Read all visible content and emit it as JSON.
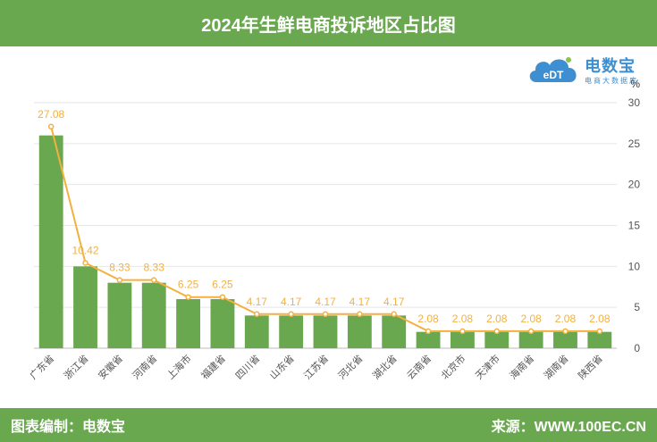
{
  "header": {
    "title": "2024年生鲜电商投诉地区占比图"
  },
  "footer": {
    "left_text": "图表编制：电数宝",
    "right_text": "来源：WWW.100EC.CN"
  },
  "logo": {
    "name": "电数宝",
    "subtitle": "电商大数据库",
    "mark_text": "eDT"
  },
  "colors": {
    "banner": "#6aa84f",
    "bar": "#6aa84f",
    "line": "#f4b03f",
    "axis_text": "#555555"
  },
  "chart_data": {
    "type": "bar",
    "categories": [
      "广东省",
      "浙江省",
      "安徽省",
      "河南省",
      "上海市",
      "福建省",
      "四川省",
      "山东省",
      "江苏省",
      "河北省",
      "湖北省",
      "云南省",
      "北京市",
      "天津市",
      "海南省",
      "湖南省",
      "陕西省"
    ],
    "series": [
      {
        "type": "bar",
        "values": [
          26,
          10,
          8,
          8,
          6,
          6,
          4,
          4,
          4,
          4,
          4,
          2,
          2,
          2,
          2,
          2,
          2
        ]
      },
      {
        "type": "line",
        "values": [
          27.08,
          10.42,
          8.33,
          8.33,
          6.25,
          6.25,
          4.17,
          4.17,
          4.17,
          4.17,
          4.17,
          2.08,
          2.08,
          2.08,
          2.08,
          2.08,
          2.08
        ]
      }
    ],
    "data_labels": [
      "27.08",
      "10.42",
      "8.33",
      "8.33",
      "6.25",
      "6.25",
      "4.17",
      "4.17",
      "4.17",
      "4.17",
      "4.17",
      "2.08",
      "2.08",
      "2.08",
      "2.08",
      "2.08",
      "2.08"
    ],
    "y_axis": {
      "position": "right",
      "unit": "%",
      "ylim": [
        0,
        30
      ],
      "ticks": [
        0,
        5,
        10,
        15,
        20,
        25,
        30
      ]
    },
    "grid": true
  }
}
